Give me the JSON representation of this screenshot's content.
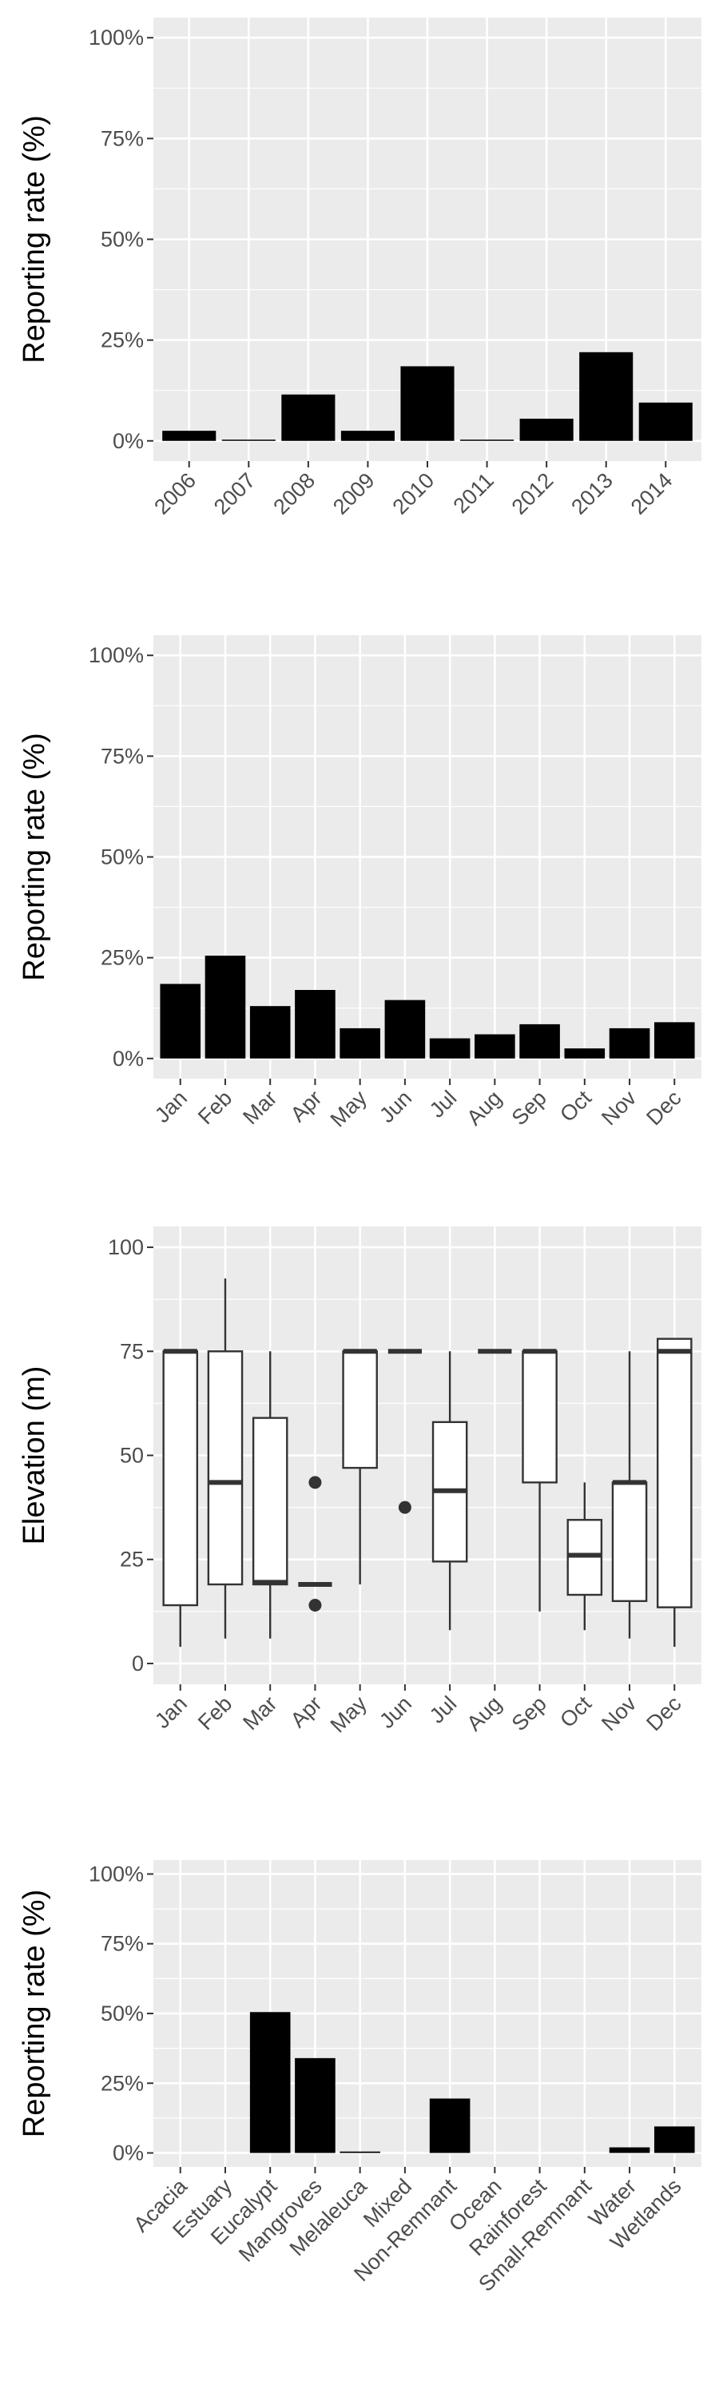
{
  "chart_data": [
    {
      "type": "bar",
      "ylabel": "Reporting rate (%)",
      "ylim": [
        0,
        100
      ],
      "yticks": [
        "0%",
        "25%",
        "50%",
        "75%",
        "100%"
      ],
      "categories": [
        "2006",
        "2007",
        "2008",
        "2009",
        "2010",
        "2011",
        "2012",
        "2013",
        "2014"
      ],
      "values": [
        2.5,
        0.3,
        11.5,
        2.5,
        18.5,
        0.3,
        5.5,
        22,
        9.5
      ],
      "grid": true,
      "colors": {
        "bar": "#000000",
        "panel": "#ebebeb",
        "grid": "#ffffff"
      }
    },
    {
      "type": "bar",
      "ylabel": "Reporting rate (%)",
      "ylim": [
        0,
        100
      ],
      "yticks": [
        "0%",
        "25%",
        "50%",
        "75%",
        "100%"
      ],
      "categories": [
        "Jan",
        "Feb",
        "Mar",
        "Apr",
        "May",
        "Jun",
        "Jul",
        "Aug",
        "Sep",
        "Oct",
        "Nov",
        "Dec"
      ],
      "values": [
        18.5,
        25.5,
        13,
        17,
        7.5,
        14.5,
        5,
        6,
        8.5,
        2.5,
        7.5,
        9
      ],
      "grid": true,
      "colors": {
        "bar": "#000000",
        "panel": "#ebebeb",
        "grid": "#ffffff"
      }
    },
    {
      "type": "boxplot",
      "ylabel": "Elevation (m)",
      "ylim": [
        0,
        100
      ],
      "yticks": [
        "0",
        "25",
        "50",
        "75",
        "100"
      ],
      "categories": [
        "Jan",
        "Feb",
        "Mar",
        "Apr",
        "May",
        "Jun",
        "Jul",
        "Aug",
        "Sep",
        "Oct",
        "Nov",
        "Dec"
      ],
      "boxes": [
        {
          "min": 4,
          "q1": 14,
          "median": 75,
          "q3": 75,
          "max": 75,
          "outliers": []
        },
        {
          "min": 6,
          "q1": 19,
          "median": 43.5,
          "q3": 75,
          "max": 92.5,
          "outliers": []
        },
        {
          "min": 6,
          "q1": 19,
          "median": 19.5,
          "q3": 59,
          "max": 75,
          "outliers": []
        },
        {
          "min": 19,
          "q1": 19,
          "median": 19,
          "q3": 19,
          "max": 19,
          "outliers": [
            43.5,
            14
          ]
        },
        {
          "min": 19,
          "q1": 47,
          "median": 75,
          "q3": 75,
          "max": 75,
          "outliers": []
        },
        {
          "min": 75,
          "q1": 75,
          "median": 75,
          "q3": 75,
          "max": 75,
          "outliers": [
            37.5
          ]
        },
        {
          "min": 8,
          "q1": 24.5,
          "median": 41.5,
          "q3": 58,
          "max": 75,
          "outliers": []
        },
        {
          "min": 75,
          "q1": 75,
          "median": 75,
          "q3": 75,
          "max": 75,
          "outliers": []
        },
        {
          "min": 12.5,
          "q1": 43.5,
          "median": 75,
          "q3": 75,
          "max": 75,
          "outliers": []
        },
        {
          "min": 8,
          "q1": 16.5,
          "median": 26,
          "q3": 34.5,
          "max": 43.5,
          "outliers": []
        },
        {
          "min": 6,
          "q1": 15,
          "median": 43.5,
          "q3": 43.5,
          "max": 75,
          "outliers": []
        },
        {
          "min": 4,
          "q1": 13.5,
          "median": 75,
          "q3": 78,
          "max": 78,
          "outliers": []
        }
      ],
      "grid": true,
      "colors": {
        "box_fill": "#ffffff",
        "box_line": "#333333",
        "panel": "#ebebeb",
        "grid": "#ffffff"
      }
    },
    {
      "type": "bar",
      "ylabel": "Reporting rate (%)",
      "ylim": [
        0,
        100
      ],
      "yticks": [
        "0%",
        "25%",
        "50%",
        "75%",
        "100%"
      ],
      "categories": [
        "Acacia",
        "Estuary",
        "Eucalypt",
        "Mangroves",
        "Melaleuca",
        "Mixed",
        "Non-Remnant",
        "Ocean",
        "Rainforest",
        "Small-Remnant",
        "Water",
        "Wetlands"
      ],
      "values": [
        0,
        0,
        50.5,
        34,
        0.5,
        0,
        19.5,
        0,
        0,
        0,
        2,
        9.5
      ],
      "grid": true,
      "colors": {
        "bar": "#000000",
        "panel": "#ebebeb",
        "grid": "#ffffff"
      }
    }
  ]
}
